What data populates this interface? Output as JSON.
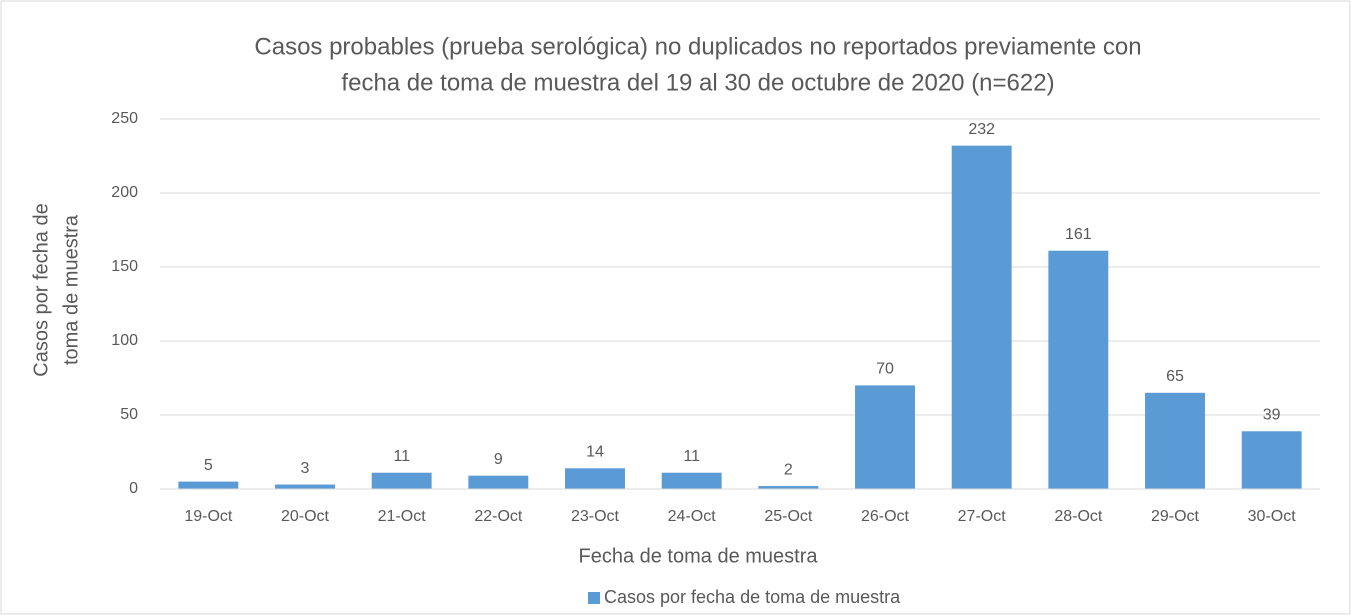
{
  "chart_data": {
    "type": "bar",
    "title": [
      "Casos probables (prueba serológica) no duplicados no reportados previamente con",
      "fecha de toma de muestra del 19 al 30 de octubre de 2020 (n=622)"
    ],
    "x_label": "Fecha de toma de muestra",
    "y_label": [
      "Casos por fecha de",
      "toma de muestra"
    ],
    "categories": [
      "19-Oct",
      "20-Oct",
      "21-Oct",
      "22-Oct",
      "23-Oct",
      "24-Oct",
      "25-Oct",
      "26-Oct",
      "27-Oct",
      "28-Oct",
      "29-Oct",
      "30-Oct"
    ],
    "series": [
      {
        "name": "Casos por fecha de toma de muestra",
        "color": "#5b9bd5",
        "values": [
          5,
          3,
          11,
          9,
          14,
          11,
          2,
          70,
          232,
          161,
          65,
          39
        ]
      }
    ],
    "ylim": [
      0,
      250
    ],
    "yticks": [
      0,
      50,
      100,
      150,
      200,
      250
    ],
    "grid": true,
    "legend": "bottom"
  }
}
